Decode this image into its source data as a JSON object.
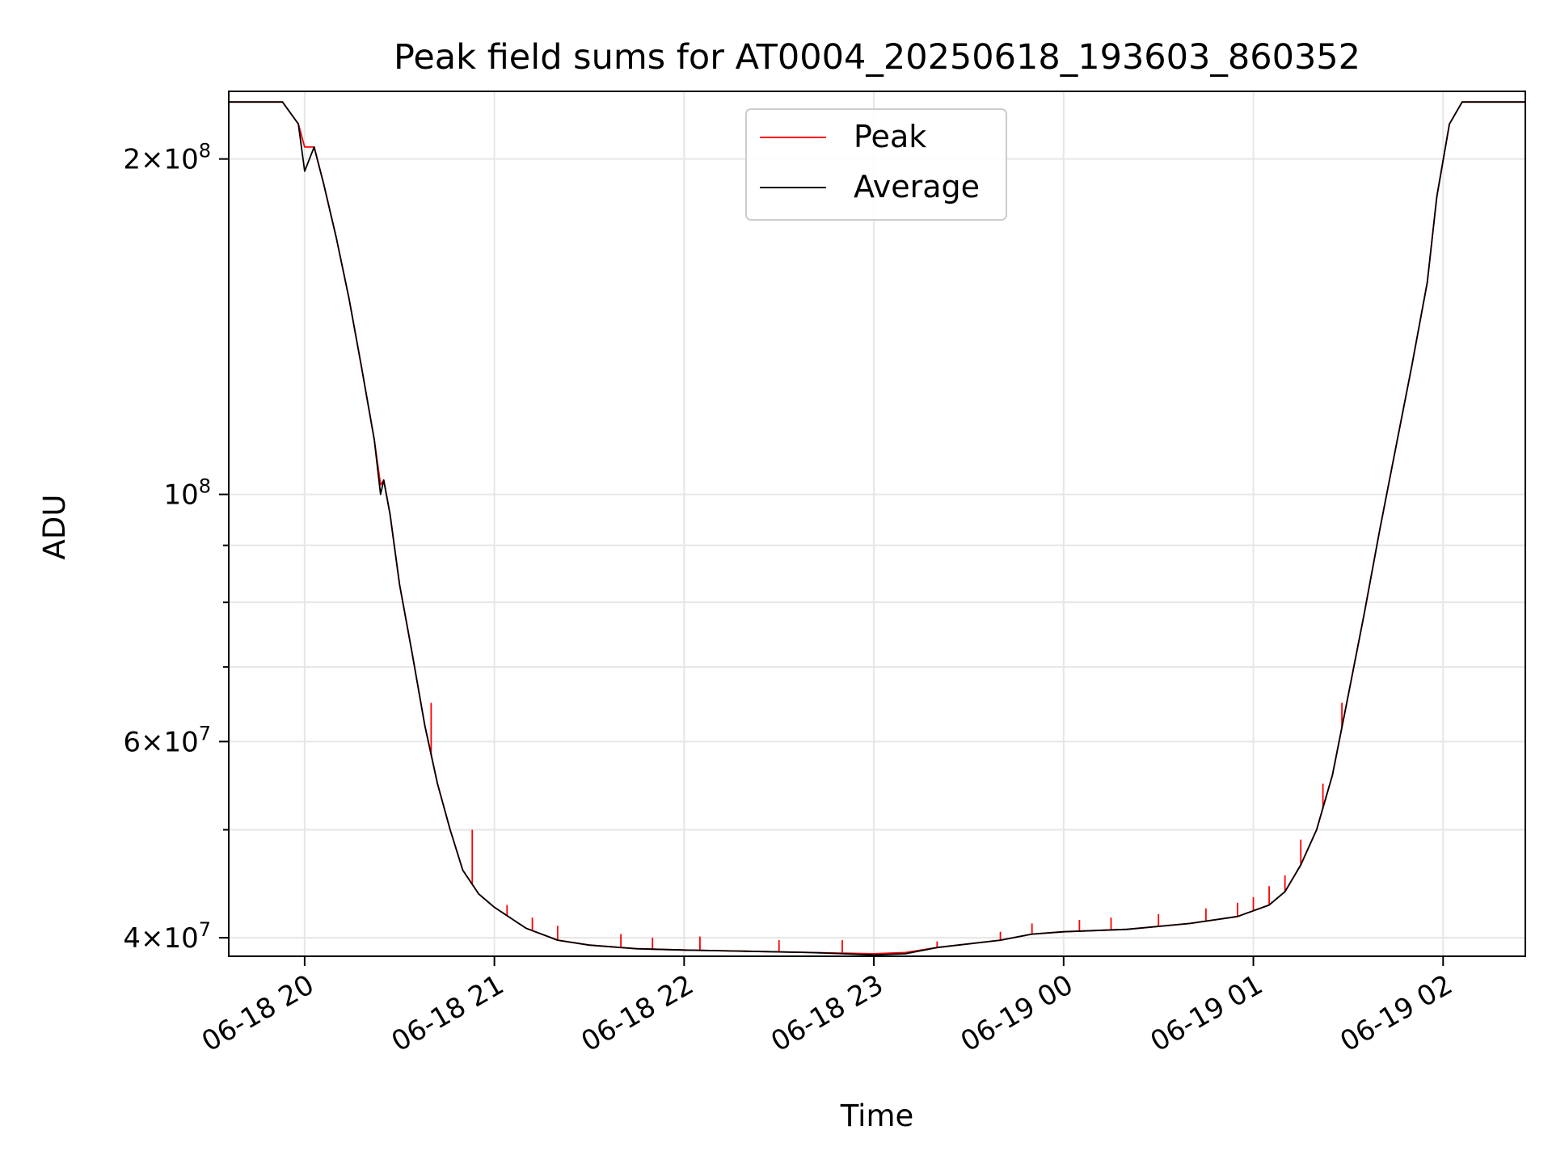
{
  "chart_data": {
    "type": "line",
    "title": "Peak field sums for AT0004_20250618_193603_860352",
    "xlabel": "Time",
    "ylabel": "ADU",
    "y_scale": "log",
    "xlim": [
      "2025-06-18 19:36",
      "2025-06-19 02:26"
    ],
    "ylim": [
      38500000,
      230000000
    ],
    "x_ticks": [
      {
        "value": "2025-06-18 20:00",
        "label": "06-18 20"
      },
      {
        "value": "2025-06-18 21:00",
        "label": "06-18 21"
      },
      {
        "value": "2025-06-18 22:00",
        "label": "06-18 22"
      },
      {
        "value": "2025-06-18 23:00",
        "label": "06-18 23"
      },
      {
        "value": "2025-06-19 00:00",
        "label": "06-19 00"
      },
      {
        "value": "2025-06-19 01:00",
        "label": "06-19 01"
      },
      {
        "value": "2025-06-19 02:00",
        "label": "06-19 02"
      }
    ],
    "y_major_ticks": [
      {
        "value": 40000000,
        "base": "4",
        "exp": "7"
      },
      {
        "value": 60000000,
        "base": "6",
        "exp": "7"
      },
      {
        "value": 100000000,
        "base": "10",
        "exp": "8"
      },
      {
        "value": 200000000,
        "base": "2",
        "exp": "8"
      }
    ],
    "y_minor_ticks": [
      50000000,
      70000000,
      80000000,
      90000000
    ],
    "grid": true,
    "legend_position": "top-center",
    "colors": {
      "peak": "#ff0000",
      "average": "#000000"
    },
    "series": [
      {
        "name": "Peak",
        "color": "#ff0000",
        "x": [
          "2025-06-18 19:36",
          "2025-06-18 19:45",
          "2025-06-18 19:53",
          "2025-06-18 19:58",
          "2025-06-18 20:00",
          "2025-06-18 20:03",
          "2025-06-18 20:06",
          "2025-06-18 20:10",
          "2025-06-18 20:14",
          "2025-06-18 20:18",
          "2025-06-18 20:22",
          "2025-06-18 20:24",
          "2025-06-18 20:25",
          "2025-06-18 20:27",
          "2025-06-18 20:30",
          "2025-06-18 20:34",
          "2025-06-18 20:38",
          "2025-06-18 20:42",
          "2025-06-18 20:46",
          "2025-06-18 20:50",
          "2025-06-18 20:55",
          "2025-06-18 21:00",
          "2025-06-18 21:10",
          "2025-06-18 21:20",
          "2025-06-18 21:30",
          "2025-06-18 21:45",
          "2025-06-18 22:00",
          "2025-06-18 22:20",
          "2025-06-18 22:40",
          "2025-06-18 23:00",
          "2025-06-18 23:10",
          "2025-06-18 23:20",
          "2025-06-18 23:40",
          "2025-06-18 23:50",
          "2025-06-19 00:00",
          "2025-06-19 00:20",
          "2025-06-19 00:40",
          "2025-06-19 00:55",
          "2025-06-19 01:05",
          "2025-06-19 01:10",
          "2025-06-19 01:15",
          "2025-06-19 01:20",
          "2025-06-19 01:25",
          "2025-06-19 01:30",
          "2025-06-19 01:35",
          "2025-06-19 01:40",
          "2025-06-19 01:45",
          "2025-06-19 01:50",
          "2025-06-19 01:55",
          "2025-06-19 01:58",
          "2025-06-19 02:02",
          "2025-06-19 02:06",
          "2025-06-19 02:26"
        ],
        "y": [
          225000000,
          225000000,
          225000000,
          215000000,
          205000000,
          205000000,
          190000000,
          170000000,
          150000000,
          130000000,
          112000000,
          102000000,
          103000000,
          96000000,
          83000000,
          72000000,
          62000000,
          55000000,
          50000000,
          46000000,
          43800000,
          42600000,
          40800000,
          39800000,
          39400000,
          39100000,
          39000000,
          38900000,
          38800000,
          38700000,
          38800000,
          39200000,
          39800000,
          40300000,
          40500000,
          40700000,
          41200000,
          41800000,
          42800000,
          44000000,
          46500000,
          50000000,
          56000000,
          66000000,
          78000000,
          93000000,
          110000000,
          130000000,
          155000000,
          185000000,
          215000000,
          225000000,
          225000000
        ],
        "spikes": [
          {
            "x": "2025-06-18 20:40",
            "y": 65000000
          },
          {
            "x": "2025-06-18 20:53",
            "y": 50000000
          },
          {
            "x": "2025-06-18 21:04",
            "y": 42800000
          },
          {
            "x": "2025-06-18 21:12",
            "y": 41700000
          },
          {
            "x": "2025-06-18 21:20",
            "y": 41000000
          },
          {
            "x": "2025-06-18 21:40",
            "y": 40300000
          },
          {
            "x": "2025-06-18 21:50",
            "y": 40000000
          },
          {
            "x": "2025-06-18 22:05",
            "y": 40100000
          },
          {
            "x": "2025-06-18 22:30",
            "y": 39800000
          },
          {
            "x": "2025-06-18 22:50",
            "y": 39800000
          },
          {
            "x": "2025-06-18 23:20",
            "y": 39700000
          },
          {
            "x": "2025-06-18 23:40",
            "y": 40500000
          },
          {
            "x": "2025-06-18 23:50",
            "y": 41200000
          },
          {
            "x": "2025-06-19 00:05",
            "y": 41500000
          },
          {
            "x": "2025-06-19 00:15",
            "y": 41700000
          },
          {
            "x": "2025-06-19 00:30",
            "y": 42000000
          },
          {
            "x": "2025-06-19 00:45",
            "y": 42500000
          },
          {
            "x": "2025-06-19 00:55",
            "y": 43000000
          },
          {
            "x": "2025-06-19 01:00",
            "y": 43500000
          },
          {
            "x": "2025-06-19 01:05",
            "y": 44500000
          },
          {
            "x": "2025-06-19 01:10",
            "y": 45500000
          },
          {
            "x": "2025-06-19 01:15",
            "y": 49000000
          },
          {
            "x": "2025-06-19 01:22",
            "y": 55000000
          },
          {
            "x": "2025-06-19 01:28",
            "y": 65000000
          }
        ]
      },
      {
        "name": "Average",
        "color": "#000000",
        "x": [
          "2025-06-18 19:36",
          "2025-06-18 19:45",
          "2025-06-18 19:53",
          "2025-06-18 19:58",
          "2025-06-18 20:00",
          "2025-06-18 20:03",
          "2025-06-18 20:06",
          "2025-06-18 20:10",
          "2025-06-18 20:14",
          "2025-06-18 20:18",
          "2025-06-18 20:22",
          "2025-06-18 20:24",
          "2025-06-18 20:25",
          "2025-06-18 20:27",
          "2025-06-18 20:30",
          "2025-06-18 20:34",
          "2025-06-18 20:38",
          "2025-06-18 20:42",
          "2025-06-18 20:46",
          "2025-06-18 20:50",
          "2025-06-18 20:55",
          "2025-06-18 21:00",
          "2025-06-18 21:10",
          "2025-06-18 21:20",
          "2025-06-18 21:30",
          "2025-06-18 21:45",
          "2025-06-18 22:00",
          "2025-06-18 22:20",
          "2025-06-18 22:40",
          "2025-06-18 23:00",
          "2025-06-18 23:10",
          "2025-06-18 23:20",
          "2025-06-18 23:40",
          "2025-06-18 23:50",
          "2025-06-19 00:00",
          "2025-06-19 00:20",
          "2025-06-19 00:40",
          "2025-06-19 00:55",
          "2025-06-19 01:05",
          "2025-06-19 01:10",
          "2025-06-19 01:15",
          "2025-06-19 01:20",
          "2025-06-19 01:25",
          "2025-06-19 01:30",
          "2025-06-19 01:35",
          "2025-06-19 01:40",
          "2025-06-19 01:45",
          "2025-06-19 01:50",
          "2025-06-19 01:55",
          "2025-06-19 01:58",
          "2025-06-19 02:02",
          "2025-06-19 02:06",
          "2025-06-19 02:26"
        ],
        "y": [
          225000000,
          225000000,
          225000000,
          215000000,
          195000000,
          205000000,
          190000000,
          170000000,
          150000000,
          130000000,
          112000000,
          100000000,
          103000000,
          96000000,
          83000000,
          72000000,
          62000000,
          55000000,
          50000000,
          46000000,
          43800000,
          42600000,
          40800000,
          39800000,
          39400000,
          39100000,
          39000000,
          38900000,
          38800000,
          38600000,
          38700000,
          39200000,
          39800000,
          40300000,
          40500000,
          40700000,
          41200000,
          41800000,
          42800000,
          44000000,
          46500000,
          50000000,
          56000000,
          66000000,
          78000000,
          93000000,
          110000000,
          130000000,
          155000000,
          185000000,
          215000000,
          225000000,
          225000000
        ]
      }
    ]
  }
}
